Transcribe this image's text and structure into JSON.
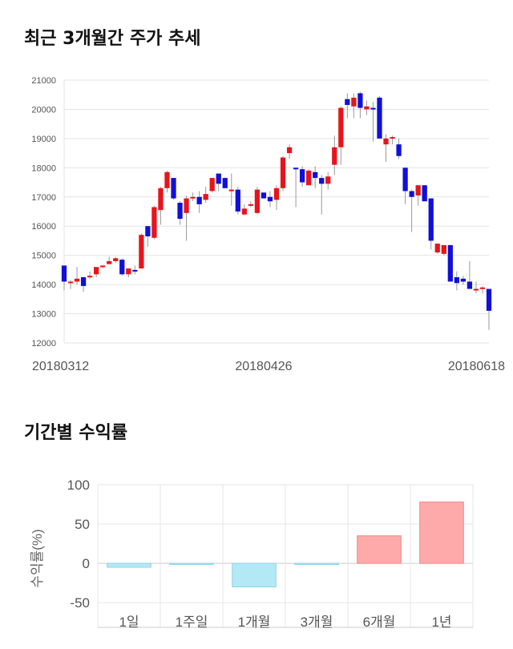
{
  "titles": {
    "price": "최근 3개월간 주가 추세",
    "returns": "기간별 수익률"
  },
  "chart_data": [
    {
      "type": "candlestick",
      "yticks": [
        12000,
        13000,
        14000,
        15000,
        16000,
        17000,
        18000,
        19000,
        20000,
        21000
      ],
      "ylim": [
        12000,
        21000
      ],
      "xtick_labels": [
        {
          "index": 0,
          "label": "20180312"
        },
        {
          "index": 31,
          "label": "20180426"
        },
        {
          "index": 66,
          "label": "20180618"
        }
      ],
      "up_color": "#e8141b",
      "down_color": "#1010d8",
      "ohlc": [
        [
          14650,
          14650,
          13800,
          14100
        ],
        [
          14050,
          14150,
          13850,
          14100
        ],
        [
          14100,
          14600,
          14000,
          14200
        ],
        [
          14250,
          14250,
          13750,
          13950
        ],
        [
          14250,
          14450,
          14200,
          14300
        ],
        [
          14350,
          14550,
          14250,
          14600
        ],
        [
          14600,
          14650,
          14550,
          14650
        ],
        [
          14700,
          14950,
          14700,
          14800
        ],
        [
          14800,
          14950,
          14750,
          14900
        ],
        [
          14850,
          14900,
          14300,
          14350
        ],
        [
          14350,
          14550,
          14250,
          14550
        ],
        [
          14500,
          14650,
          14350,
          14450
        ],
        [
          14550,
          15750,
          14550,
          15700
        ],
        [
          16000,
          16000,
          15300,
          15650
        ],
        [
          15600,
          16700,
          15550,
          16650
        ],
        [
          16550,
          17350,
          16050,
          17300
        ],
        [
          17300,
          17900,
          17150,
          17850
        ],
        [
          17650,
          17650,
          16900,
          16950
        ],
        [
          16800,
          16850,
          16050,
          16250
        ],
        [
          16450,
          17050,
          15500,
          16950
        ],
        [
          16950,
          17150,
          16850,
          17000
        ],
        [
          17000,
          17200,
          16450,
          16750
        ],
        [
          16900,
          17350,
          16800,
          17100
        ],
        [
          17200,
          17600,
          17150,
          17650
        ],
        [
          17800,
          17800,
          17200,
          17450
        ],
        [
          17650,
          17650,
          17300,
          17300
        ],
        [
          17250,
          17800,
          16700,
          17250
        ],
        [
          17250,
          17350,
          16400,
          16500
        ],
        [
          16400,
          16750,
          16350,
          16600
        ],
        [
          16700,
          16850,
          16650,
          16750
        ],
        [
          16450,
          17350,
          16400,
          17250
        ],
        [
          17150,
          17150,
          16950,
          16950
        ],
        [
          17000,
          17200,
          16650,
          16850
        ],
        [
          16900,
          17400,
          16550,
          17300
        ],
        [
          17300,
          18400,
          17200,
          18350
        ],
        [
          18500,
          18800,
          18300,
          18700
        ],
        [
          18000,
          18000,
          16650,
          17950
        ],
        [
          17950,
          18050,
          17350,
          17500
        ],
        [
          17400,
          17950,
          17400,
          17900
        ],
        [
          17850,
          18050,
          17300,
          17650
        ],
        [
          17650,
          17750,
          16400,
          17450
        ],
        [
          17450,
          17850,
          17250,
          17700
        ],
        [
          18100,
          19100,
          17750,
          18700
        ],
        [
          18700,
          20100,
          18100,
          20050
        ],
        [
          20350,
          20550,
          19700,
          20150
        ],
        [
          20100,
          20550,
          19700,
          20400
        ],
        [
          20550,
          20600,
          19700,
          20050
        ],
        [
          20000,
          20300,
          19800,
          20100
        ],
        [
          20050,
          20250,
          18900,
          20000
        ],
        [
          20400,
          20450,
          19050,
          19000
        ],
        [
          18800,
          19150,
          18200,
          19000
        ],
        [
          19000,
          19100,
          18800,
          19050
        ],
        [
          18800,
          19000,
          18300,
          18400
        ],
        [
          18000,
          18000,
          16750,
          17200
        ],
        [
          17200,
          17250,
          15800,
          17000
        ],
        [
          17050,
          17400,
          16700,
          17400
        ],
        [
          17400,
          17400,
          16900,
          16850
        ],
        [
          16950,
          16950,
          15200,
          15500
        ],
        [
          15100,
          15400,
          15050,
          15400
        ],
        [
          15050,
          15350,
          15000,
          15350
        ],
        [
          15350,
          15350,
          14100,
          14100
        ],
        [
          14250,
          14450,
          13800,
          14050
        ],
        [
          14200,
          14300,
          14000,
          14100
        ],
        [
          14100,
          14800,
          13900,
          13850
        ],
        [
          13800,
          14100,
          13700,
          13850
        ],
        [
          13850,
          13950,
          13700,
          13900
        ],
        [
          13850,
          13850,
          12450,
          13100
        ]
      ]
    },
    {
      "type": "bar",
      "categories": [
        "1일",
        "1주일",
        "1개월",
        "3개월",
        "6개월",
        "1년"
      ],
      "values": [
        -5,
        -1,
        -30,
        -1,
        35,
        78
      ],
      "ylim": [
        -55,
        100
      ],
      "yticks": [
        100,
        50,
        0,
        -50
      ],
      "ylabel": "수익률(%)",
      "positive_color": "#ffaaaa",
      "negative_color": "#b3e9f5"
    }
  ]
}
